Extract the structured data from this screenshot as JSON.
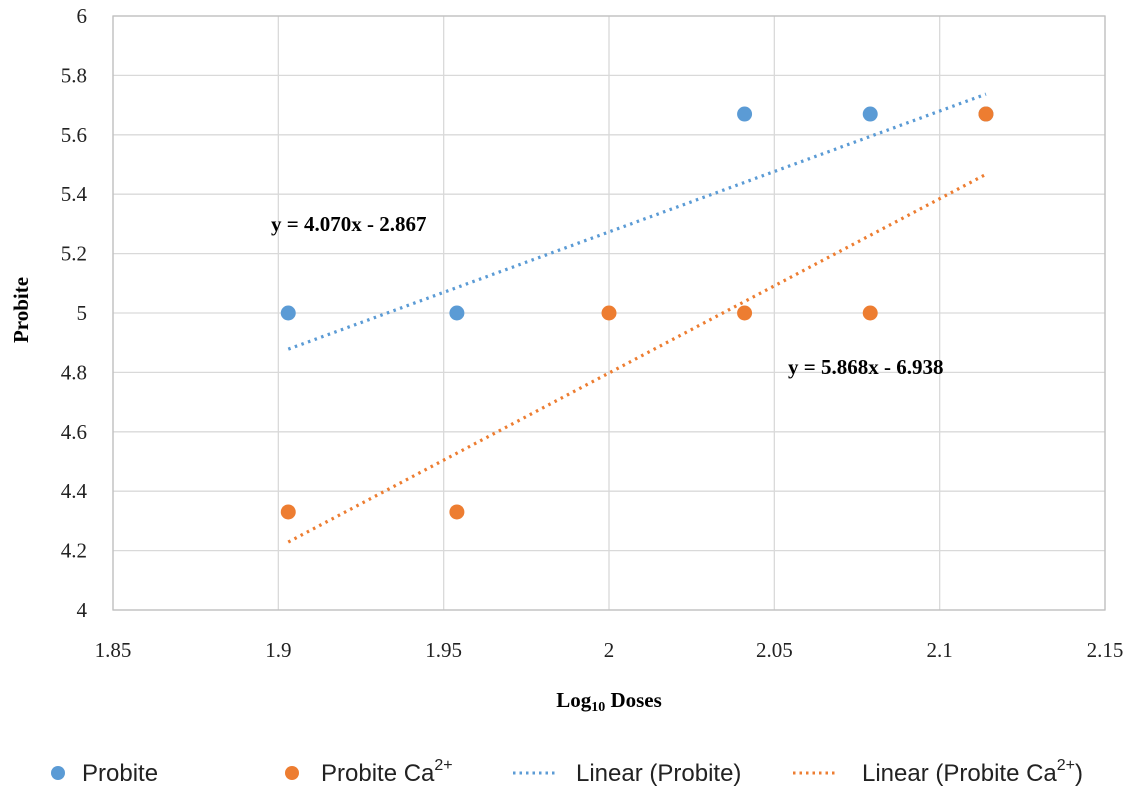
{
  "chart_data": {
    "type": "scatter",
    "xlabel": "Log10 Doses",
    "xlabel_main": "Log",
    "xlabel_sub": "10",
    "xlabel_rest": " Doses",
    "ylabel": "Probite",
    "xlim": [
      1.85,
      2.15
    ],
    "ylim": [
      4,
      6
    ],
    "x_ticks": [
      "1.85",
      "1.9",
      "1.95",
      "2",
      "2.05",
      "2.1",
      "2.15"
    ],
    "y_ticks": [
      "4",
      "4.2",
      "4.4",
      "4.6",
      "4.8",
      "5",
      "5.2",
      "5.4",
      "5.6",
      "5.8",
      "6"
    ],
    "grid": true,
    "legend_position": "bottom",
    "series": [
      {
        "name": "Probite",
        "color": "#5B9BD5",
        "points": [
          [
            1.903,
            5.0
          ],
          [
            1.954,
            5.0
          ],
          [
            2.041,
            5.67
          ],
          [
            2.079,
            5.67
          ],
          [
            2.114,
            5.67
          ]
        ]
      },
      {
        "name": "Probite Ca2+",
        "name_main": "Probite Ca",
        "name_sup": "2+",
        "color": "#ED7D31",
        "points": [
          [
            1.903,
            4.33
          ],
          [
            1.954,
            4.33
          ],
          [
            2.0,
            5.0
          ],
          [
            2.041,
            5.0
          ],
          [
            2.079,
            5.0
          ],
          [
            2.114,
            5.67
          ]
        ]
      }
    ],
    "trendlines": [
      {
        "name": "Linear (Probite)",
        "color": "#5B9BD5",
        "x_range": [
          1.903,
          2.114
        ],
        "slope": 4.07,
        "intercept": -2.867,
        "equation": "y = 4.070x - 2.867"
      },
      {
        "name": "Linear (Probite Ca2+)",
        "name_main": "Linear (Probite Ca",
        "name_sup": "2+",
        "name_end": ")",
        "color": "#ED7D31",
        "x_range": [
          1.903,
          2.114
        ],
        "slope": 5.868,
        "intercept": -6.938,
        "equation": "y = 5.868x - 6.938"
      }
    ]
  },
  "legend": {
    "probite": "Probite",
    "probite_ca_main": "Probite Ca",
    "probite_ca_sup": "2+",
    "linear_probite": "Linear (Probite)",
    "linear_probite_ca_main": "Linear (Probite Ca",
    "linear_probite_ca_sup": "2+",
    "linear_probite_ca_end": ")"
  }
}
